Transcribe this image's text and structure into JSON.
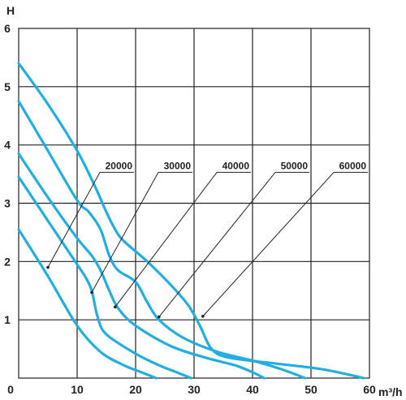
{
  "chart_data": {
    "type": "line",
    "xlabel": "m³/h",
    "ylabel": "H",
    "xlim": [
      0,
      60
    ],
    "ylim": [
      0,
      6
    ],
    "x_ticks": [
      "0",
      "10",
      "20",
      "30",
      "40",
      "50",
      "60"
    ],
    "y_ticks": [
      "1",
      "2",
      "3",
      "4",
      "5",
      "6"
    ],
    "grid": true,
    "series": [
      {
        "name": "20000",
        "color": "#22aee0",
        "points": [
          [
            0,
            2.55
          ],
          [
            5,
            1.75
          ],
          [
            10,
            0.9
          ],
          [
            14,
            0.45
          ],
          [
            18,
            0.22
          ],
          [
            21,
            0.1
          ],
          [
            23.5,
            0
          ]
        ]
      },
      {
        "name": "30000",
        "color": "#22aee0",
        "points": [
          [
            0,
            3.45
          ],
          [
            5,
            2.7
          ],
          [
            10,
            1.95
          ],
          [
            11.5,
            1.72
          ],
          [
            12.5,
            1.5
          ],
          [
            13.5,
            1.05
          ],
          [
            15,
            0.75
          ],
          [
            20,
            0.42
          ],
          [
            24,
            0.22
          ],
          [
            27,
            0.1
          ],
          [
            29.5,
            0
          ]
        ]
      },
      {
        "name": "40000",
        "color": "#22aee0",
        "points": [
          [
            0,
            3.85
          ],
          [
            5,
            3.1
          ],
          [
            10,
            2.4
          ],
          [
            12.5,
            2.1
          ],
          [
            14,
            1.85
          ],
          [
            15.5,
            1.5
          ],
          [
            17,
            1.2
          ],
          [
            20,
            0.9
          ],
          [
            26,
            0.55
          ],
          [
            32,
            0.35
          ],
          [
            37,
            0.22
          ],
          [
            40,
            0.1
          ],
          [
            42,
            0
          ]
        ]
      },
      {
        "name": "50000",
        "color": "#22aee0",
        "points": [
          [
            0,
            4.75
          ],
          [
            5,
            3.9
          ],
          [
            10,
            3.05
          ],
          [
            12,
            2.85
          ],
          [
            14,
            2.55
          ],
          [
            15.5,
            2.1
          ],
          [
            17,
            1.85
          ],
          [
            20,
            1.65
          ],
          [
            22,
            1.3
          ],
          [
            24,
            1.0
          ],
          [
            28,
            0.7
          ],
          [
            34,
            0.45
          ],
          [
            40,
            0.3
          ],
          [
            45,
            0.15
          ],
          [
            49,
            0
          ]
        ]
      },
      {
        "name": "60000",
        "color": "#22aee0",
        "points": [
          [
            0,
            5.4
          ],
          [
            5,
            4.7
          ],
          [
            10,
            3.9
          ],
          [
            13,
            3.3
          ],
          [
            15,
            2.85
          ],
          [
            16.5,
            2.55
          ],
          [
            18,
            2.35
          ],
          [
            22,
            2.0
          ],
          [
            26,
            1.6
          ],
          [
            29,
            1.25
          ],
          [
            31,
            0.9
          ],
          [
            33,
            0.5
          ],
          [
            36,
            0.35
          ],
          [
            44,
            0.25
          ],
          [
            52,
            0.15
          ],
          [
            59,
            0
          ]
        ]
      }
    ],
    "annotations": [
      {
        "text": "20000",
        "label_x": 20,
        "label_y": 3.53,
        "point": [
          5,
          1.9
        ]
      },
      {
        "text": "30000",
        "label_x": 30,
        "label_y": 3.53,
        "point": [
          12.5,
          1.47
        ]
      },
      {
        "text": "40000",
        "label_x": 40,
        "label_y": 3.53,
        "point": [
          16.5,
          1.22
        ]
      },
      {
        "text": "50000",
        "label_x": 50,
        "label_y": 3.53,
        "point": [
          24,
          1.05
        ]
      },
      {
        "text": "60000",
        "label_x": 60,
        "label_y": 3.53,
        "point": [
          31.5,
          1.06
        ]
      }
    ]
  }
}
